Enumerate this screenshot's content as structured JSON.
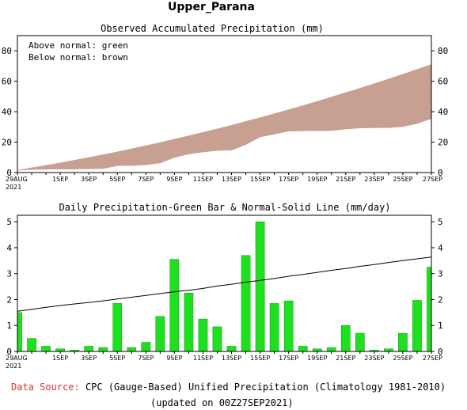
{
  "title": "Upper_Parana",
  "colors": {
    "above": "#00cc00",
    "below": "#c8a092",
    "bar": "#1fe01f",
    "bar_edge": "#00a000",
    "normal_line": "#000000",
    "source_label": "#e03030"
  },
  "chart_data": [
    {
      "type": "area",
      "title": "Observed Accumulated Precipitation (mm)",
      "legend": [
        "Above normal: green",
        "Below normal: brown"
      ],
      "legend_position": "top-left",
      "x": [
        "29AUG",
        "30AUG",
        "31AUG",
        "1SEP",
        "2SEP",
        "3SEP",
        "4SEP",
        "5SEP",
        "6SEP",
        "7SEP",
        "8SEP",
        "9SEP",
        "10SEP",
        "11SEP",
        "12SEP",
        "13SEP",
        "14SEP",
        "15SEP",
        "16SEP",
        "17SEP",
        "18SEP",
        "19SEP",
        "20SEP",
        "21SEP",
        "22SEP",
        "23SEP",
        "24SEP",
        "25SEP",
        "26SEP",
        "27SEP"
      ],
      "xtick_labels": [
        "29AUG",
        "1SEP",
        "3SEP",
        "5SEP",
        "7SEP",
        "9SEP",
        "11SEP",
        "13SEP",
        "15SEP",
        "17SEP",
        "19SEP",
        "21SEP",
        "23SEP",
        "25SEP",
        "27SEP"
      ],
      "xtick_sublabel": "2021",
      "series": [
        {
          "name": "Observed",
          "values": [
            1.5,
            2.0,
            2.2,
            2.3,
            2.3,
            2.5,
            2.6,
            4.5,
            4.6,
            5.0,
            6.3,
            9.9,
            12.2,
            13.5,
            14.5,
            14.7,
            18.4,
            23.4,
            25.3,
            27.2,
            27.4,
            27.5,
            27.6,
            28.6,
            29.3,
            29.4,
            29.5,
            30.2,
            32.2,
            35.5
          ]
        },
        {
          "name": "Normal",
          "values": [
            1.5,
            3.1,
            4.7,
            6.4,
            8.1,
            9.9,
            11.7,
            13.6,
            15.6,
            17.6,
            19.7,
            21.9,
            24.1,
            26.4,
            28.7,
            31.1,
            33.6,
            36.1,
            38.7,
            41.3,
            44.0,
            46.8,
            49.6,
            52.5,
            55.4,
            58.4,
            61.5,
            64.6,
            67.8,
            71.0
          ]
        }
      ],
      "ylim": [
        0,
        90
      ],
      "yticks": [
        0,
        20,
        40,
        60,
        80
      ]
    },
    {
      "type": "bar",
      "title": "Daily Precipitation-Green Bar & Normal-Solid Line (mm/day)",
      "x": [
        "29AUG",
        "30AUG",
        "31AUG",
        "1SEP",
        "2SEP",
        "3SEP",
        "4SEP",
        "5SEP",
        "6SEP",
        "7SEP",
        "8SEP",
        "9SEP",
        "10SEP",
        "11SEP",
        "12SEP",
        "13SEP",
        "14SEP",
        "15SEP",
        "16SEP",
        "17SEP",
        "18SEP",
        "19SEP",
        "20SEP",
        "21SEP",
        "22SEP",
        "23SEP",
        "24SEP",
        "25SEP",
        "26SEP",
        "27SEP"
      ],
      "xtick_labels": [
        "29AUG",
        "1SEP",
        "3SEP",
        "5SEP",
        "7SEP",
        "9SEP",
        "11SEP",
        "13SEP",
        "15SEP",
        "17SEP",
        "19SEP",
        "21SEP",
        "23SEP",
        "25SEP",
        "27SEP"
      ],
      "xtick_sublabel": "2021",
      "series": [
        {
          "name": "Daily",
          "values": [
            1.5,
            0.5,
            0.2,
            0.1,
            0.05,
            0.2,
            0.15,
            1.85,
            0.15,
            0.35,
            1.35,
            3.55,
            2.25,
            1.25,
            0.95,
            0.2,
            3.7,
            5.0,
            1.85,
            1.95,
            0.2,
            0.1,
            0.15,
            1.0,
            0.7,
            0.05,
            0.1,
            0.7,
            1.97,
            3.25
          ]
        },
        {
          "name": "Normal",
          "values": [
            1.55,
            1.62,
            1.7,
            1.77,
            1.83,
            1.89,
            1.95,
            2.02,
            2.09,
            2.16,
            2.23,
            2.3,
            2.36,
            2.43,
            2.52,
            2.59,
            2.67,
            2.74,
            2.81,
            2.9,
            2.97,
            3.05,
            3.13,
            3.2,
            3.28,
            3.35,
            3.43,
            3.5,
            3.57,
            3.64
          ]
        }
      ],
      "ylim": [
        0,
        5.25
      ],
      "yticks": [
        0,
        1,
        2,
        3,
        4,
        5
      ]
    }
  ],
  "footer": {
    "source_label": "Data Source:",
    "source_text": "CPC (Gauge-Based) Unified Precipitation (Climatology 1981-2010)",
    "updated": "(updated on 00Z27SEP2021)"
  }
}
